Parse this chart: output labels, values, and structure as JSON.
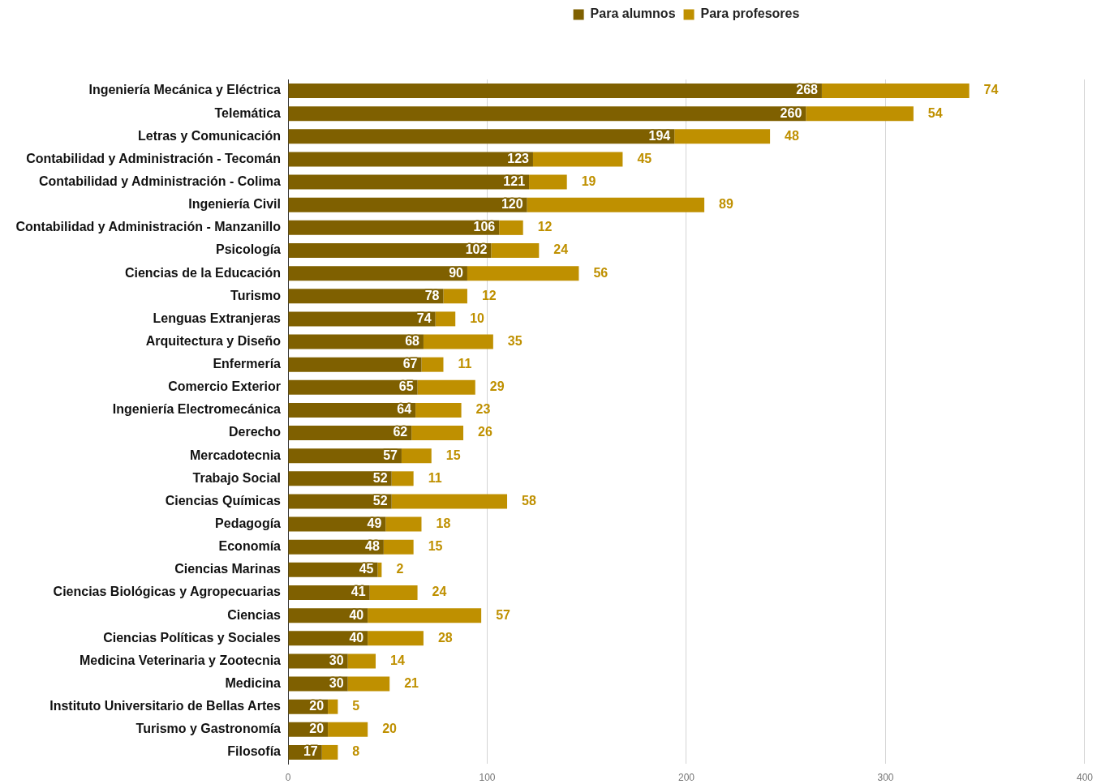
{
  "chart_data": {
    "type": "bar",
    "orientation": "horizontal",
    "stacked": true,
    "categories": [
      "Ingeniería Mecánica y Eléctrica",
      "Telemática",
      "Letras y Comunicación",
      "Contabilidad y Administración - Tecomán",
      "Contabilidad y Administración - Colima",
      "Ingeniería Civil",
      "Contabilidad y Administración - Manzanillo",
      "Psicología",
      "Ciencias de la Educación",
      "Turismo",
      "Lenguas Extranjeras",
      "Arquitectura y Diseño",
      "Enfermería",
      "Comercio Exterior",
      "Ingeniería Electromecánica",
      "Derecho",
      "Mercadotecnia",
      "Trabajo Social",
      "Ciencias Químicas",
      "Pedagogía",
      "Economía",
      "Ciencias Marinas",
      "Ciencias Biológicas y Agropecuarias",
      "Ciencias",
      "Ciencias Políticas y Sociales",
      "Medicina Veterinaria y Zootecnia",
      "Medicina",
      "Instituto Universitario de Bellas Artes",
      "Turismo y Gastronomía",
      "Filosofía"
    ],
    "series": [
      {
        "name": "Para alumnos",
        "color": "#7f6000",
        "values": [
          268,
          260,
          194,
          123,
          121,
          120,
          106,
          102,
          90,
          78,
          74,
          68,
          67,
          65,
          64,
          62,
          57,
          52,
          52,
          49,
          48,
          45,
          41,
          40,
          40,
          30,
          30,
          20,
          20,
          17
        ]
      },
      {
        "name": "Para profesores",
        "color": "#bf9000",
        "values": [
          74,
          54,
          48,
          45,
          19,
          89,
          12,
          24,
          56,
          12,
          10,
          35,
          11,
          29,
          23,
          26,
          15,
          11,
          58,
          18,
          15,
          2,
          24,
          57,
          28,
          14,
          21,
          5,
          20,
          8
        ]
      }
    ],
    "xlim": [
      0,
      400
    ],
    "xticks": [
      0,
      100,
      200,
      300,
      400
    ],
    "grid": "x",
    "legend": "top",
    "data_labels": true
  }
}
